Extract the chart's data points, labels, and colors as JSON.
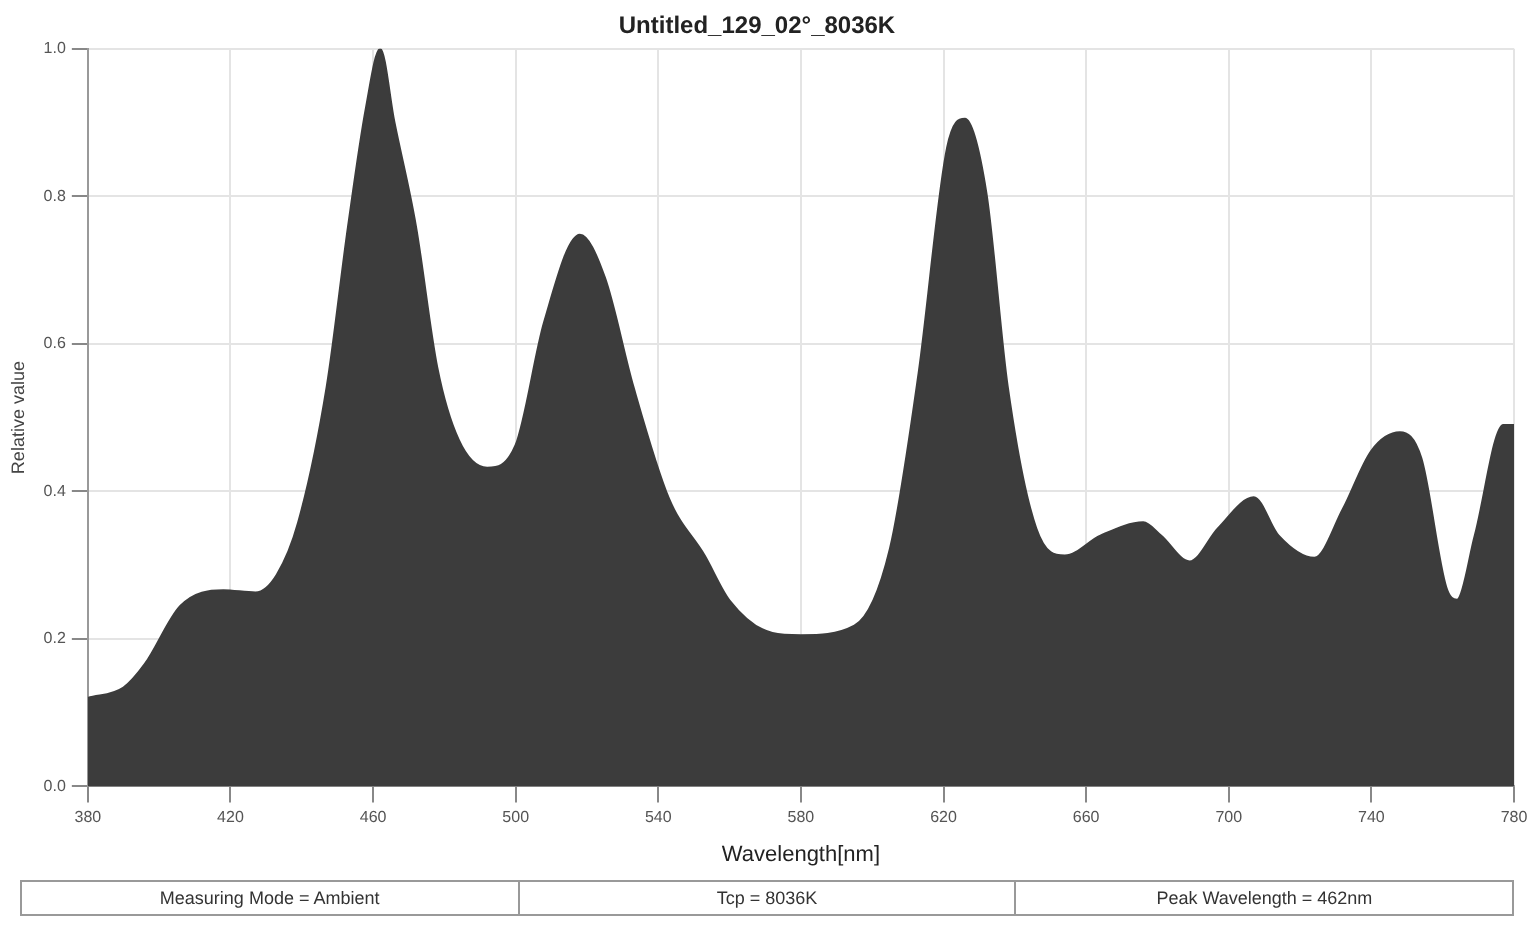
{
  "chart_data": {
    "type": "area",
    "title": "Untitled_129_02°_8036K",
    "xlabel": "Wavelength[nm]",
    "ylabel": "Relative value",
    "series": [
      {
        "color": "#3c3c3c",
        "x": [
          380,
          390,
          396,
          406,
          418,
          427,
          433,
          439,
          447,
          453,
          458,
          462,
          466,
          472,
          478,
          484,
          492,
          500,
          508,
          518,
          525,
          533,
          543,
          553,
          560,
          572,
          580,
          595,
          605,
          613,
          621,
          626,
          632,
          638,
          646,
          654,
          664,
          676,
          681,
          689,
          697,
          707,
          714,
          724,
          732,
          740,
          748,
          754,
          761,
          764,
          769,
          777,
          780
        ],
        "values": [
          0.12,
          0.134,
          0.166,
          0.245,
          0.266,
          0.263,
          0.287,
          0.358,
          0.542,
          0.76,
          0.92,
          1.0,
          0.9,
          0.76,
          0.568,
          0.47,
          0.432,
          0.463,
          0.63,
          0.748,
          0.69,
          0.542,
          0.39,
          0.313,
          0.252,
          0.208,
          0.205,
          0.218,
          0.323,
          0.56,
          0.866,
          0.905,
          0.805,
          0.542,
          0.35,
          0.313,
          0.34,
          0.358,
          0.34,
          0.305,
          0.35,
          0.392,
          0.34,
          0.31,
          0.376,
          0.455,
          0.48,
          0.445,
          0.27,
          0.253,
          0.34,
          0.49,
          0.49
        ]
      }
    ],
    "xlim": [
      380,
      780
    ],
    "xticks": [
      380,
      420,
      460,
      500,
      540,
      580,
      620,
      660,
      700,
      740,
      780
    ],
    "ylim": [
      0,
      1
    ],
    "yticks": [
      {
        "value": 0,
        "label": "0.0"
      },
      0.2,
      0.4,
      0.6,
      0.8,
      {
        "value": 1,
        "label": "1.0"
      }
    ],
    "grid": true,
    "legend": false,
    "annotations": [
      "Measuring Mode = Ambient",
      "Tcp = 8036K",
      "Peak Wavelength = 462nm"
    ]
  }
}
